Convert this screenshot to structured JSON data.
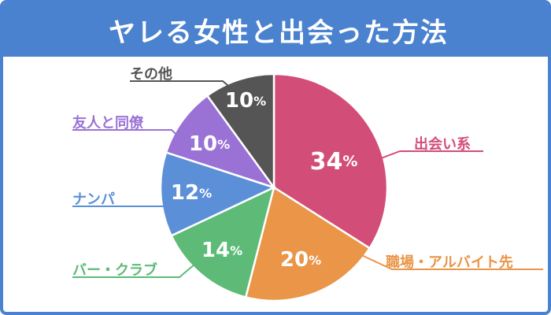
{
  "chart_data": {
    "type": "pie",
    "title": "ヤレる女性と出会った方法",
    "unit": "%",
    "categories": [
      "出会い系",
      "職場・アルバイト先",
      "バー・クラブ",
      "ナンパ",
      "友人と同僚",
      "その他"
    ],
    "values": [
      34,
      20,
      14,
      12,
      10,
      10
    ],
    "colors": [
      "#d24d77",
      "#ea9548",
      "#5dbb77",
      "#5b90d8",
      "#9a72d6",
      "#555555"
    ],
    "start": "12 o'clock",
    "direction": "clockwise"
  },
  "colors": {
    "title_bar": "#4a82cf",
    "title_text": "#ffffff",
    "slice_text": "#ffffff"
  }
}
